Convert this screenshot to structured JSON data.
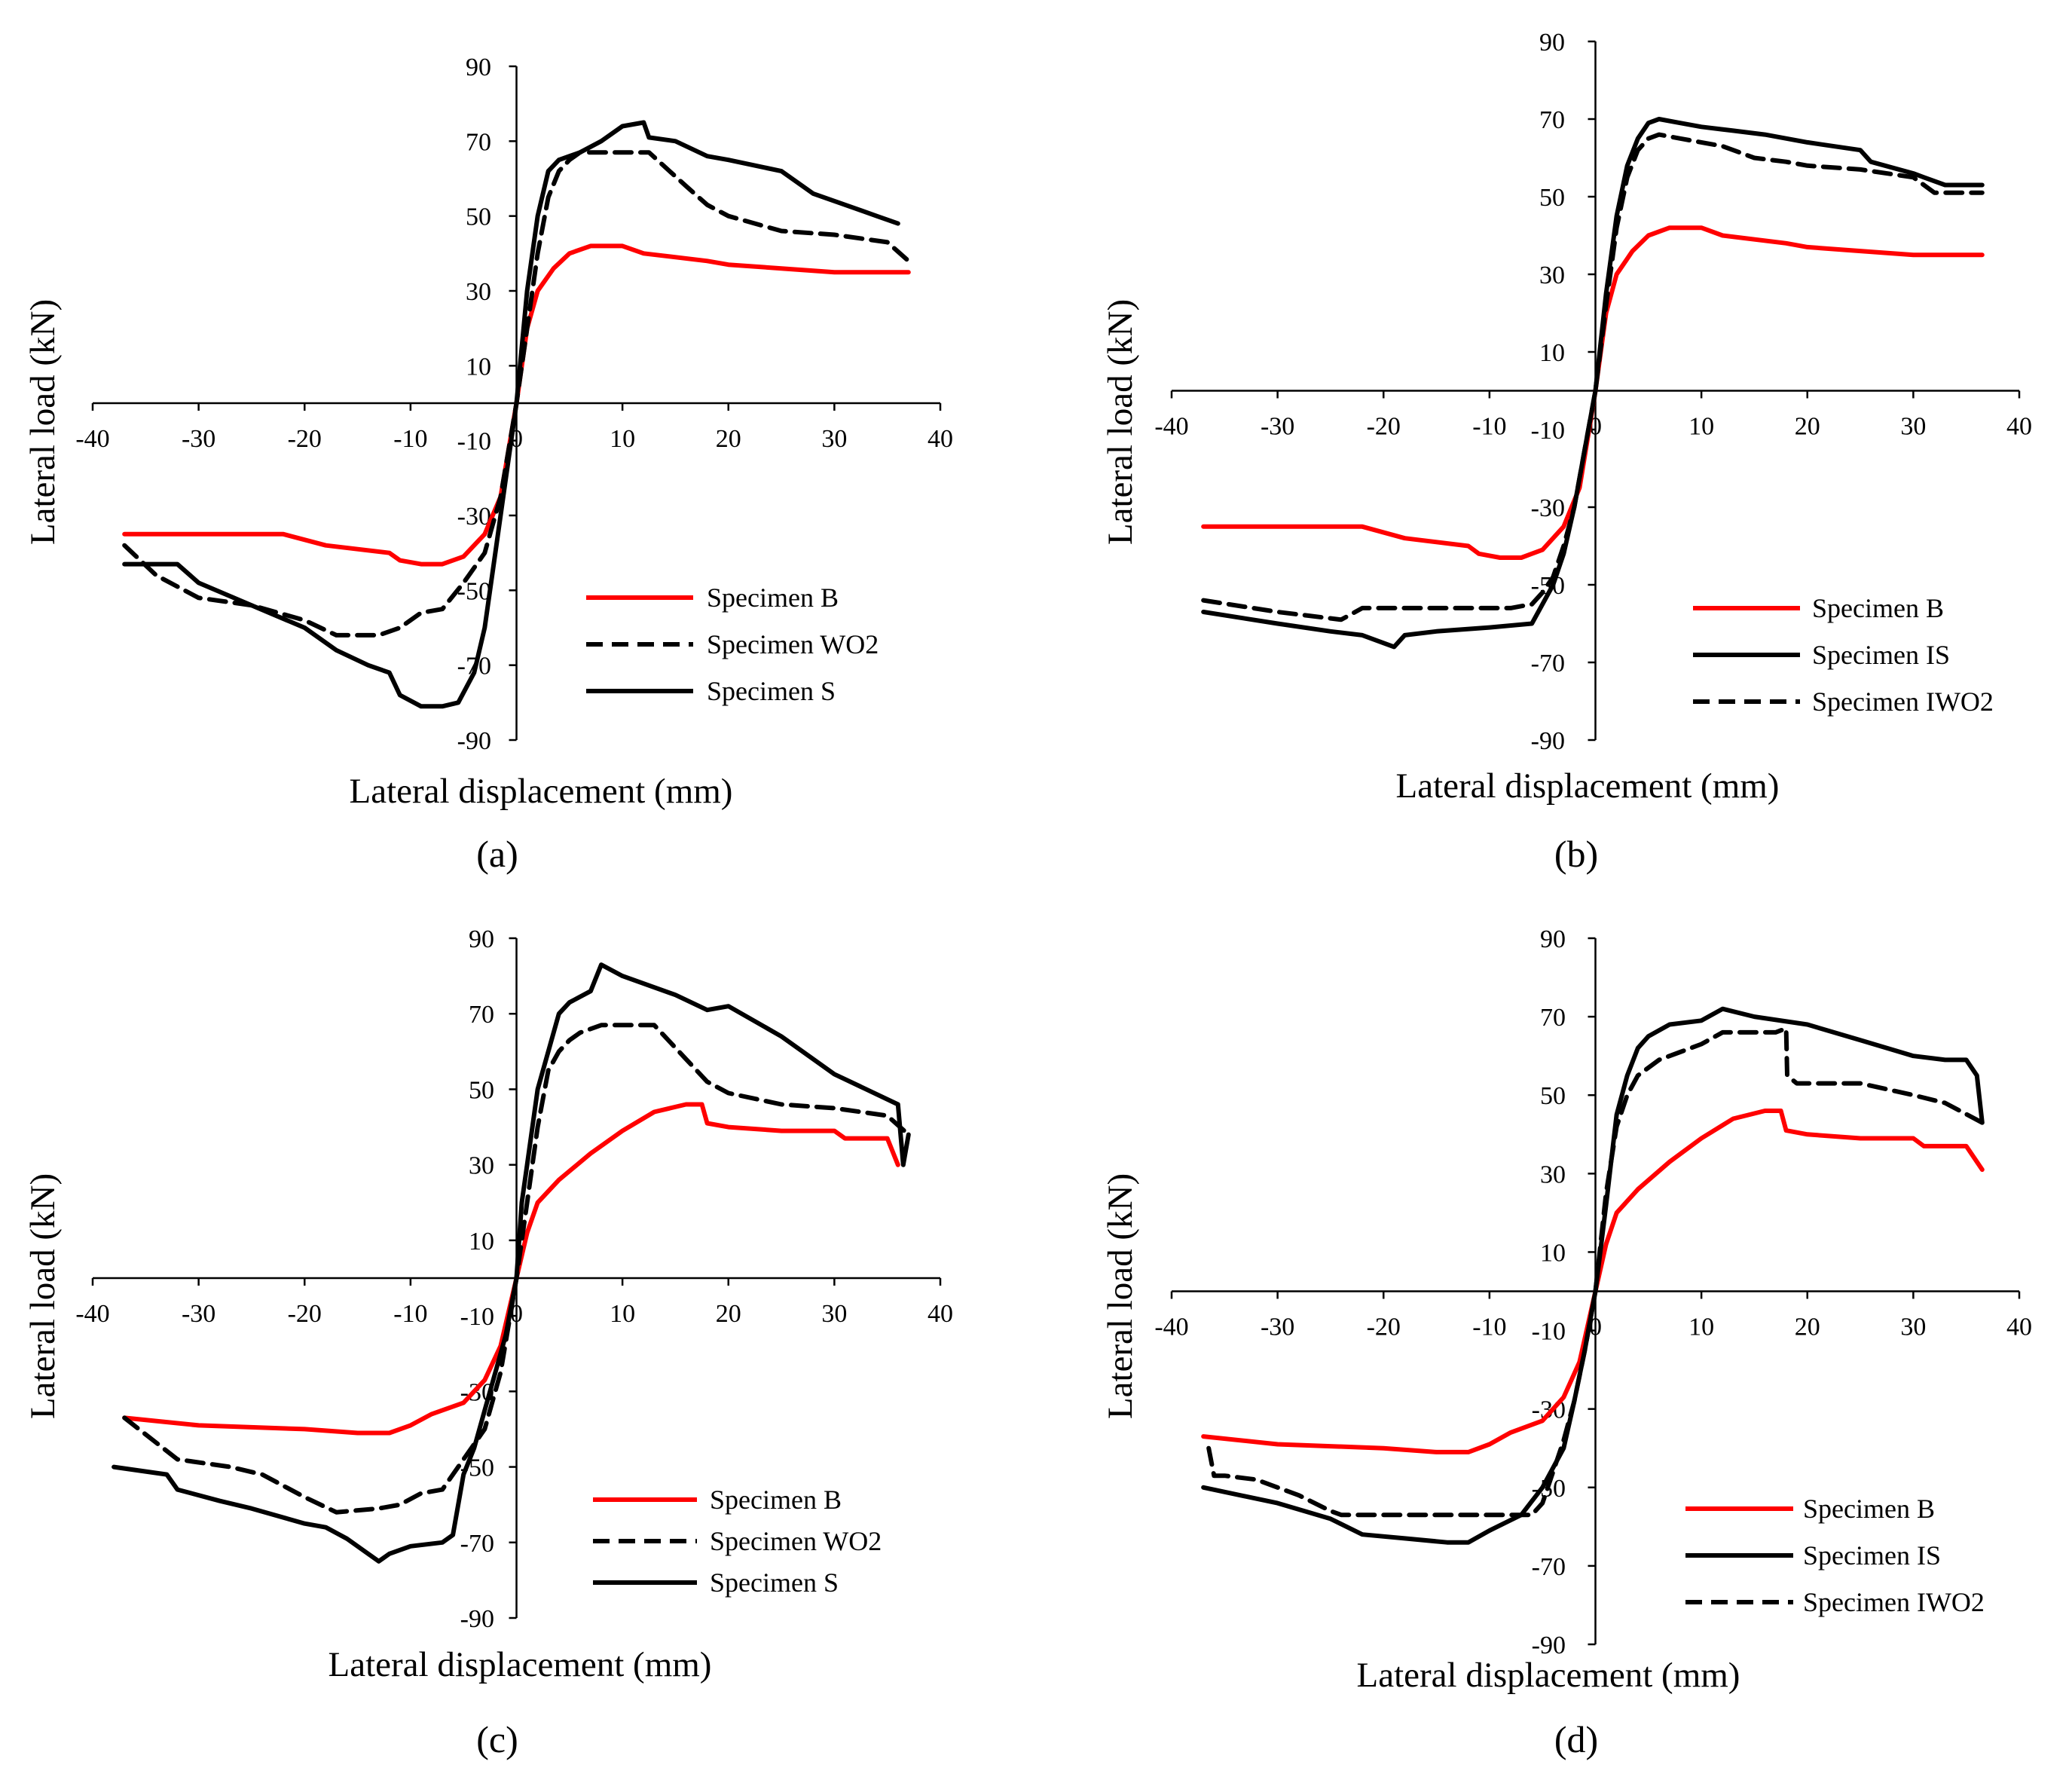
{
  "figure": {
    "colors": {
      "red": "#ff0000",
      "black": "#000000"
    },
    "panel_labels": [
      "(a)",
      "(b)",
      "(c)",
      "(d)"
    ]
  },
  "chart_data": [
    {
      "type": "line",
      "xlabel": "Lateral displacement (mm)",
      "ylabel": "Lateral load (kN)",
      "xlim": [
        -40,
        40
      ],
      "ylim": [
        -90,
        90
      ],
      "xticks": [
        "-40",
        "-30",
        "-20",
        "-10",
        "0",
        "10",
        "20",
        "30",
        "40"
      ],
      "yticks": [
        "90",
        "70",
        "50",
        "30",
        "10",
        "-10",
        "-30",
        "-50",
        "-70",
        "-90"
      ],
      "series": [
        {
          "name": "Specimen B",
          "color": "red",
          "dash": "solid",
          "x": [
            -37,
            -28,
            -22,
            -18,
            -12,
            -11,
            -9,
            -7,
            -5,
            -3,
            -1.5,
            0,
            1,
            2,
            3.5,
            5,
            7,
            10,
            12,
            18,
            20,
            25,
            30,
            37
          ],
          "y": [
            -35,
            -35,
            -35,
            -38,
            -40,
            -42,
            -43,
            -43,
            -41,
            -35,
            -25,
            0,
            20,
            30,
            36,
            40,
            42,
            42,
            40,
            38,
            37,
            36,
            35,
            35
          ]
        },
        {
          "name": "Specimen WO2",
          "color": "black",
          "dash": "dashed",
          "x": [
            -37,
            -34,
            -30,
            -25,
            -20,
            -17,
            -13,
            -11,
            -9,
            -7,
            -5,
            -3,
            -1.5,
            0,
            1,
            2,
            3,
            4,
            5,
            6,
            8,
            10,
            12.5,
            16,
            18,
            20,
            25,
            30,
            35,
            37
          ],
          "y": [
            -38,
            -46,
            -52,
            -54,
            -58,
            -62,
            -62,
            -60,
            -56,
            -55,
            -48,
            -40,
            -25,
            0,
            20,
            40,
            55,
            62,
            65,
            67,
            67,
            67,
            67,
            58,
            53,
            50,
            46,
            45,
            43,
            38
          ]
        },
        {
          "name": "Specimen S",
          "color": "black",
          "dash": "solid",
          "x": [
            -37,
            -32,
            -30,
            -25,
            -20,
            -17,
            -14,
            -12,
            -11,
            -9,
            -7,
            -5.5,
            -4,
            -3,
            -2,
            -1,
            0,
            1,
            2,
            3,
            4,
            5,
            6,
            8,
            10,
            12,
            12.5,
            15,
            18,
            20,
            25,
            28,
            30,
            32,
            34,
            36
          ],
          "y": [
            -43,
            -43,
            -48,
            -54,
            -60,
            -66,
            -70,
            -72,
            -78,
            -81,
            -81,
            -80,
            -72,
            -60,
            -40,
            -20,
            0,
            30,
            50,
            62,
            65,
            66,
            67,
            70,
            74,
            75,
            71,
            70,
            66,
            65,
            62,
            56,
            54,
            52,
            50,
            48
          ]
        }
      ]
    },
    {
      "type": "line",
      "xlabel": "Lateral displacement (mm)",
      "ylabel": "Lateral load (kN)",
      "xlim": [
        -40,
        40
      ],
      "ylim": [
        -90,
        90
      ],
      "xticks": [
        "-40",
        "-30",
        "-20",
        "-10",
        "0",
        "10",
        "20",
        "30",
        "40"
      ],
      "yticks": [
        "90",
        "70",
        "50",
        "30",
        "10",
        "-10",
        "-30",
        "-50",
        "-70",
        "-90"
      ],
      "series": [
        {
          "name": "Specimen B",
          "color": "red",
          "dash": "solid",
          "x": [
            -37,
            -28,
            -22,
            -18,
            -12,
            -11,
            -9,
            -7,
            -5,
            -3,
            -1.5,
            0,
            1,
            2,
            3.5,
            5,
            7,
            10,
            12,
            18,
            20,
            25,
            30,
            36.5
          ],
          "y": [
            -35,
            -35,
            -35,
            -38,
            -40,
            -42,
            -43,
            -43,
            -41,
            -35,
            -25,
            0,
            20,
            30,
            36,
            40,
            42,
            42,
            40,
            38,
            37,
            36,
            35,
            35
          ]
        },
        {
          "name": "Specimen IS",
          "color": "black",
          "dash": "solid",
          "x": [
            -37,
            -30,
            -25,
            -22,
            -19,
            -18,
            -15,
            -10,
            -6,
            -5,
            -4,
            -3,
            -2,
            -1,
            0,
            1,
            2,
            3,
            4,
            5,
            6,
            8,
            10,
            13,
            16,
            20,
            25,
            26,
            30,
            31,
            33,
            36.5
          ],
          "y": [
            -57,
            -60,
            -62,
            -63,
            -66,
            -63,
            -62,
            -61,
            -60,
            -55,
            -50,
            -42,
            -30,
            -15,
            0,
            25,
            45,
            58,
            65,
            69,
            70,
            69,
            68,
            67,
            66,
            64,
            62,
            59,
            56,
            55,
            53,
            53
          ]
        },
        {
          "name": "Specimen IWO2",
          "color": "black",
          "dash": "dashed",
          "x": [
            -37,
            -30,
            -24,
            -22,
            -15,
            -12,
            -8,
            -6,
            -5,
            -4,
            -3,
            -2,
            -1,
            0,
            1,
            2,
            3,
            4,
            5,
            6,
            8,
            10,
            12,
            15,
            18,
            20,
            25,
            30,
            32,
            36.5
          ],
          "y": [
            -54,
            -57,
            -59,
            -56,
            -56,
            -56,
            -56,
            -55,
            -52,
            -48,
            -40,
            -30,
            -15,
            0,
            22,
            42,
            55,
            62,
            65,
            66,
            65,
            64,
            63,
            60,
            59,
            58,
            57,
            55,
            51,
            51
          ]
        }
      ]
    },
    {
      "type": "line",
      "xlabel": "Lateral displacement (mm)",
      "ylabel": "Lateral load (kN)",
      "xlim": [
        -40,
        40
      ],
      "ylim": [
        -90,
        90
      ],
      "xticks": [
        "-40",
        "-30",
        "-20",
        "-10",
        "0",
        "10",
        "20",
        "30",
        "40"
      ],
      "yticks": [
        "90",
        "70",
        "50",
        "30",
        "10",
        "-10",
        "-30",
        "-50",
        "-70",
        "-90"
      ],
      "series": [
        {
          "name": "Specimen B",
          "color": "red",
          "dash": "solid",
          "x": [
            -37,
            -30,
            -20,
            -15,
            -12,
            -10,
            -8,
            -5,
            -3,
            -1.5,
            0,
            1,
            2,
            4,
            7,
            10,
            13,
            16,
            17.5,
            18,
            20,
            25,
            30,
            31,
            35,
            36
          ],
          "y": [
            -37,
            -39,
            -40,
            -41,
            -41,
            -39,
            -36,
            -33,
            -27,
            -18,
            0,
            12,
            20,
            26,
            33,
            39,
            44,
            46,
            46,
            41,
            40,
            39,
            39,
            37,
            37,
            30
          ]
        },
        {
          "name": "Specimen WO2",
          "color": "black",
          "dash": "dashed",
          "x": [
            -37,
            -32,
            -27,
            -24,
            -20,
            -17,
            -13,
            -11,
            -9,
            -7,
            -5,
            -3,
            -1.5,
            0,
            1,
            2,
            3,
            4,
            5,
            6,
            8,
            10,
            13,
            16,
            18,
            20,
            25,
            30,
            35,
            37
          ],
          "y": [
            -37,
            -48,
            -50,
            -52,
            -58,
            -62,
            -61,
            -60,
            -57,
            -56,
            -48,
            -40,
            -25,
            0,
            20,
            40,
            55,
            60,
            63,
            65,
            67,
            67,
            67,
            58,
            52,
            49,
            46,
            45,
            43,
            38
          ]
        },
        {
          "name": "Specimen S",
          "color": "black",
          "dash": "solid",
          "x": [
            -38,
            -33,
            -32,
            -28,
            -25,
            -20,
            -18,
            -16,
            -14,
            -13,
            -12,
            -10,
            -7,
            -6,
            -5,
            -4,
            -3,
            -2,
            -1,
            0,
            0.5,
            1,
            2,
            3,
            4,
            5,
            7,
            8,
            10,
            15,
            18,
            20,
            25,
            30,
            33,
            36,
            36.5,
            37
          ],
          "y": [
            -50,
            -52,
            -56,
            -59,
            -61,
            -65,
            -66,
            -69,
            -73,
            -75,
            -73,
            -71,
            -70,
            -68,
            -52,
            -45,
            -35,
            -25,
            -15,
            0,
            20,
            30,
            50,
            60,
            70,
            73,
            76,
            83,
            80,
            75,
            71,
            72,
            64,
            54,
            50,
            46,
            30,
            38
          ]
        }
      ]
    },
    {
      "type": "line",
      "xlabel": "Lateral displacement (mm)",
      "ylabel": "Lateral load (kN)",
      "xlim": [
        -40,
        40
      ],
      "ylim": [
        -90,
        90
      ],
      "xticks": [
        "-40",
        "-30",
        "-20",
        "-10",
        "0",
        "10",
        "20",
        "30",
        "40"
      ],
      "yticks": [
        "90",
        "70",
        "50",
        "30",
        "10",
        "-10",
        "-30",
        "-50",
        "-70",
        "-90"
      ],
      "series": [
        {
          "name": "Specimen B",
          "color": "red",
          "dash": "solid",
          "x": [
            -37,
            -30,
            -20,
            -15,
            -12,
            -10,
            -8,
            -5,
            -3,
            -1.5,
            0,
            1,
            2,
            4,
            7,
            10,
            13,
            16,
            17.5,
            18,
            20,
            25,
            30,
            31,
            35,
            36.5
          ],
          "y": [
            -37,
            -39,
            -40,
            -41,
            -41,
            -39,
            -36,
            -33,
            -27,
            -18,
            0,
            12,
            20,
            26,
            33,
            39,
            44,
            46,
            46,
            41,
            40,
            39,
            39,
            37,
            37,
            31
          ]
        },
        {
          "name": "Specimen IS",
          "color": "black",
          "dash": "solid",
          "x": [
            -37,
            -30,
            -25,
            -22,
            -18,
            -14,
            -12,
            -10,
            -7,
            -5,
            -3,
            -2,
            -1,
            0,
            1,
            2,
            3,
            4,
            5,
            7,
            10,
            12,
            15,
            20,
            25,
            30,
            33,
            35,
            36,
            36.5
          ],
          "y": [
            -50,
            -54,
            -58,
            -62,
            -63,
            -64,
            -64,
            -61,
            -57,
            -50,
            -40,
            -28,
            -15,
            0,
            22,
            45,
            55,
            62,
            65,
            68,
            69,
            72,
            70,
            68,
            64,
            60,
            59,
            59,
            55,
            43
          ]
        },
        {
          "name": "Specimen IWO2",
          "color": "black",
          "dash": "dashed",
          "x": [
            -36.5,
            -36,
            -35,
            -32,
            -28,
            -25,
            -24,
            -20,
            -15,
            -10,
            -6,
            -5,
            -4,
            -3,
            -2,
            -1,
            0,
            1,
            2,
            3,
            4,
            5,
            6,
            8,
            10,
            12,
            15,
            17,
            18,
            18.1,
            19,
            20,
            25,
            30,
            33,
            36.5
          ],
          "y": [
            -40,
            -47,
            -47,
            -48,
            -52,
            -56,
            -57,
            -57,
            -57,
            -57,
            -57,
            -54,
            -46,
            -38,
            -28,
            -15,
            0,
            25,
            42,
            50,
            55,
            57,
            59,
            61,
            63,
            66,
            66,
            66,
            67,
            55,
            53,
            53,
            53,
            50,
            48,
            43
          ]
        }
      ]
    }
  ]
}
